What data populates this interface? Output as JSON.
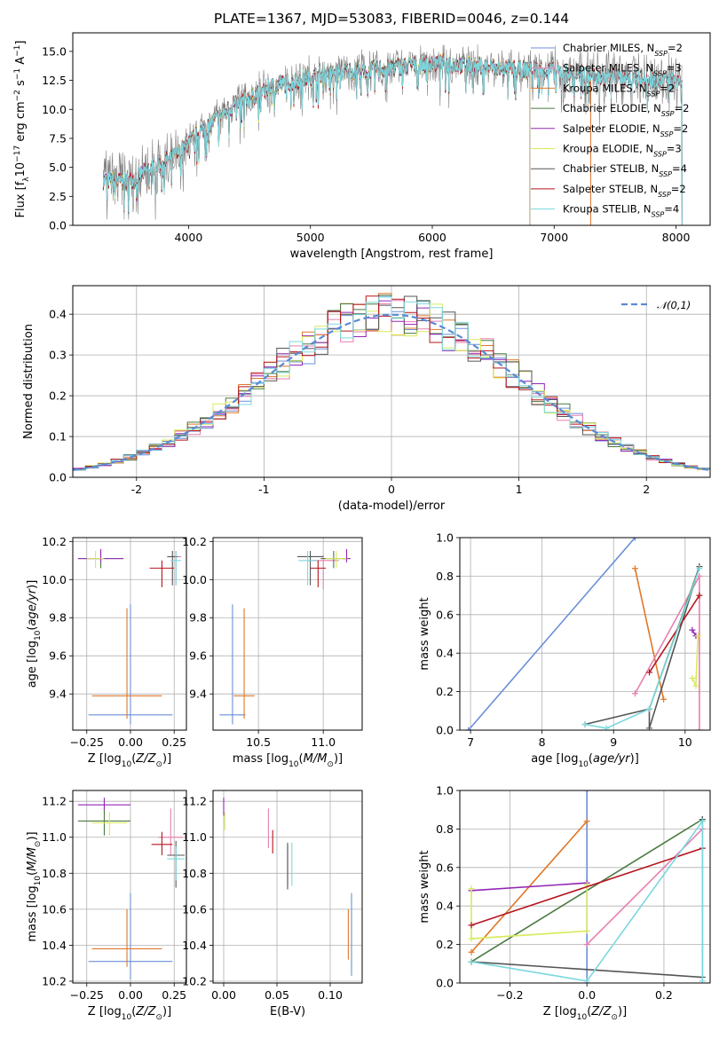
{
  "title": "PLATE=1367, MJD=53083, FIBERID=0046, z=0.144",
  "colors": {
    "Chabrier MILES": "#6a8fd8",
    "Salpeter MILES": "#e77fb0",
    "Kroupa MILES": "#e0782a",
    "Chabrier ELODIE": "#4a7a40",
    "Salpeter ELODIE": "#9226b4",
    "Kroupa ELODIE": "#d8ea5a",
    "Chabrier STELIB": "#555555",
    "Salpeter STELIB": "#b5161e",
    "Kroupa STELIB": "#7ad7dd",
    "data": "#808080",
    "normal": "#5b8ad6"
  },
  "chart_data": [
    {
      "type": "line",
      "panel": "spectrum",
      "xlabel": "wavelength [Angstrom, rest frame]",
      "ylabel": "Flux [f_λ10^-17 erg cm^-2 s^-1 A^-1]",
      "xlim": [
        3050,
        8280
      ],
      "ylim": [
        0,
        16.6
      ],
      "xticks": [
        4000,
        5000,
        6000,
        7000,
        8000
      ],
      "yticks": [
        0.0,
        2.5,
        5.0,
        7.5,
        10.0,
        12.5,
        15.0
      ],
      "legend_position": "top-right",
      "legend": [
        {
          "label": "Chabrier MILES, N",
          "sub": "SSP",
          "n": "=2",
          "model": "Chabrier MILES"
        },
        {
          "label": "Salpeter MILES, N",
          "sub": "SSP",
          "n": "=3",
          "model": "Salpeter MILES"
        },
        {
          "label": "Kroupa MILES, N",
          "sub": "SSP",
          "n": "=2",
          "model": "Kroupa MILES"
        },
        {
          "label": "Chabrier ELODIE, N",
          "sub": "SSP",
          "n": "=2",
          "model": "Chabrier ELODIE"
        },
        {
          "label": "Salpeter ELODIE, N",
          "sub": "SSP",
          "n": "=2",
          "model": "Salpeter ELODIE"
        },
        {
          "label": "Kroupa ELODIE, N",
          "sub": "SSP",
          "n": "=3",
          "model": "Kroupa ELODIE"
        },
        {
          "label": "Chabrier STELIB, N",
          "sub": "SSP",
          "n": "=4",
          "model": "Chabrier STELIB"
        },
        {
          "label": "Salpeter STELIB, N",
          "sub": "SSP",
          "n": "=2",
          "model": "Salpeter STELIB"
        },
        {
          "label": "Kroupa STELIB, N",
          "sub": "SSP",
          "n": "=4",
          "model": "Kroupa STELIB"
        }
      ],
      "continuum": [
        [
          3300,
          3.9
        ],
        [
          3500,
          3.7
        ],
        [
          3700,
          5.0
        ],
        [
          3900,
          6.0
        ],
        [
          4000,
          7.2
        ],
        [
          4200,
          9.0
        ],
        [
          4400,
          10.5
        ],
        [
          4700,
          12.0
        ],
        [
          5000,
          12.8
        ],
        [
          5200,
          13.2
        ],
        [
          5500,
          13.4
        ],
        [
          5800,
          13.8
        ],
        [
          6000,
          14.0
        ],
        [
          6300,
          13.8
        ],
        [
          6600,
          13.5
        ],
        [
          7000,
          13.3
        ],
        [
          7400,
          12.8
        ],
        [
          7700,
          12.6
        ],
        [
          8050,
          12.4
        ]
      ],
      "model_ranges": {
        "Chabrier MILES": [
          3300,
          7300
        ],
        "Salpeter MILES": [
          3300,
          7300
        ],
        "Kroupa MILES": [
          3300,
          7300
        ],
        "Chabrier ELODIE": [
          3300,
          6800
        ],
        "Salpeter ELODIE": [
          3300,
          6800
        ],
        "Kroupa ELODIE": [
          3300,
          6800
        ],
        "Chabrier STELIB": [
          3300,
          8050
        ],
        "Salpeter STELIB": [
          3300,
          8050
        ],
        "Kroupa STELIB": [
          3300,
          8050
        ]
      }
    },
    {
      "type": "histogram",
      "panel": "residuals",
      "xlabel": "(data-model)/error",
      "ylabel": "Normed distribution",
      "xlim": [
        -2.5,
        2.5
      ],
      "ylim": [
        0,
        0.47
      ],
      "xticks": [
        -2,
        -1,
        0,
        1,
        2
      ],
      "yticks": [
        0.0,
        0.1,
        0.2,
        0.3,
        0.4
      ],
      "legend_position": "top-right",
      "legend_label": "𝒩(0,1)",
      "bin_width": 0.1,
      "normal_curve": {
        "mean": 0,
        "sigma": 1
      }
    },
    {
      "type": "scatter",
      "panel": "age-vs-Z",
      "xlabel": "Z [log10(Z/Z⊙)]",
      "ylabel": "age  [log10(age/yr)]",
      "xlim": [
        -0.33,
        0.32
      ],
      "ylim": [
        9.21,
        10.22
      ],
      "xticks": [
        -0.25,
        0.0,
        0.25
      ],
      "xticklabels": [
        "−0.25",
        "0.00",
        "0.25"
      ],
      "yticks": [
        9.4,
        9.6,
        9.8,
        10.0,
        10.2
      ],
      "points": [
        {
          "model": "Chabrier MILES",
          "x": 0.0,
          "xerr": 0.24,
          "y": 9.29,
          "yerr_lo": 0.05,
          "yerr_hi": 0.58
        },
        {
          "model": "Kroupa MILES",
          "x": -0.02,
          "xerr": 0.2,
          "y": 9.39,
          "yerr_lo": 0.12,
          "yerr_hi": 0.46
        },
        {
          "model": "Salpeter MILES",
          "x": 0.26,
          "xerr": 0.03,
          "y": 10.12,
          "yerr_lo": 0.15,
          "yerr_hi": 0.03
        },
        {
          "model": "Chabrier ELODIE",
          "x": -0.17,
          "xerr": 0.13,
          "y": 10.11,
          "yerr_lo": 0.05,
          "yerr_hi": 0.04
        },
        {
          "model": "Salpeter ELODIE",
          "x": -0.17,
          "xerr": 0.13,
          "y": 10.11,
          "yerr_lo": 0.02,
          "yerr_hi": 0.05
        },
        {
          "model": "Kroupa ELODIE",
          "x": -0.2,
          "xerr": 0.05,
          "y": 10.11,
          "yerr_lo": 0.05,
          "yerr_hi": 0.04
        },
        {
          "model": "Chabrier STELIB",
          "x": 0.24,
          "xerr": 0.03,
          "y": 10.12,
          "yerr_lo": 0.15,
          "yerr_hi": 0.03
        },
        {
          "model": "Salpeter STELIB",
          "x": 0.18,
          "xerr": 0.07,
          "y": 10.06,
          "yerr_lo": 0.1,
          "yerr_hi": 0.04
        },
        {
          "model": "Kroupa STELIB",
          "x": 0.26,
          "xerr": 0.03,
          "y": 10.1,
          "yerr_lo": 0.13,
          "yerr_hi": 0.05
        }
      ]
    },
    {
      "type": "scatter",
      "panel": "age-vs-mass",
      "xlabel": "mass [log10(M/M⊙)]",
      "ylabel": "",
      "xlim": [
        10.15,
        11.3
      ],
      "ylim": [
        9.21,
        10.22
      ],
      "xticks": [
        10.5,
        11.0
      ],
      "xticklabels": [
        "10.5",
        "11.0"
      ],
      "yticks": [
        9.4,
        9.6,
        9.8,
        10.0,
        10.2
      ],
      "points": [
        {
          "model": "Chabrier MILES",
          "x": 10.3,
          "xerr": 0.1,
          "y": 9.29,
          "yerr_lo": 0.05,
          "yerr_hi": 0.58
        },
        {
          "model": "Kroupa MILES",
          "x": 10.39,
          "xerr": 0.08,
          "y": 9.39,
          "yerr_lo": 0.12,
          "yerr_hi": 0.46
        },
        {
          "model": "Salpeter MILES",
          "x": 11.0,
          "xerr": 0.12,
          "y": 10.1,
          "yerr_lo": 0.15,
          "yerr_hi": 0.03
        },
        {
          "model": "Chabrier ELODIE",
          "x": 11.08,
          "xerr": 0.1,
          "y": 10.11,
          "yerr_lo": 0.05,
          "yerr_hi": 0.04
        },
        {
          "model": "Salpeter ELODIE",
          "x": 11.18,
          "xerr": 0.03,
          "y": 10.11,
          "yerr_lo": 0.02,
          "yerr_hi": 0.05
        },
        {
          "model": "Kroupa ELODIE",
          "x": 11.1,
          "xerr": 0.08,
          "y": 10.11,
          "yerr_lo": 0.05,
          "yerr_hi": 0.04
        },
        {
          "model": "Chabrier STELIB",
          "x": 10.9,
          "xerr": 0.1,
          "y": 10.12,
          "yerr_lo": 0.15,
          "yerr_hi": 0.03
        },
        {
          "model": "Salpeter STELIB",
          "x": 10.96,
          "xerr": 0.06,
          "y": 10.06,
          "yerr_lo": 0.1,
          "yerr_hi": 0.04
        },
        {
          "model": "Kroupa STELIB",
          "x": 10.88,
          "xerr": 0.07,
          "y": 10.1,
          "yerr_lo": 0.13,
          "yerr_hi": 0.05
        }
      ]
    },
    {
      "type": "line",
      "panel": "mass-weight-vs-age",
      "xlabel": "age  [log10(age/yr)]",
      "ylabel": "mass weight",
      "xlim": [
        6.85,
        10.35
      ],
      "ylim": [
        0,
        1.0
      ],
      "xticks": [
        7,
        8,
        9,
        10
      ],
      "yticks": [
        0.0,
        0.2,
        0.4,
        0.6,
        0.8,
        1.0
      ],
      "series": [
        {
          "model": "Chabrier MILES",
          "x": [
            6.97,
            9.3
          ],
          "y": [
            0.0,
            1.0
          ]
        },
        {
          "model": "Kroupa MILES",
          "x": [
            9.3,
            9.7
          ],
          "y": [
            0.84,
            0.16
          ]
        },
        {
          "model": "Salpeter MILES",
          "x": [
            9.3,
            10.2,
            10.2
          ],
          "y": [
            0.19,
            0.8,
            0.0
          ]
        },
        {
          "model": "Chabrier ELODIE",
          "x": [
            9.5,
            10.2
          ],
          "y": [
            0.11,
            0.85
          ]
        },
        {
          "model": "Salpeter ELODIE",
          "x": [
            10.1,
            10.15
          ],
          "y": [
            0.52,
            0.49
          ]
        },
        {
          "model": "Kroupa ELODIE",
          "x": [
            10.1,
            10.15,
            10.18
          ],
          "y": [
            0.27,
            0.23,
            0.49
          ]
        },
        {
          "model": "Chabrier STELIB",
          "x": [
            8.6,
            9.5,
            9.5,
            10.2
          ],
          "y": [
            0.03,
            0.11,
            0.01,
            0.85
          ]
        },
        {
          "model": "Salpeter STELIB",
          "x": [
            9.5,
            10.2
          ],
          "y": [
            0.3,
            0.7
          ]
        },
        {
          "model": "Kroupa STELIB",
          "x": [
            8.6,
            8.9,
            9.5,
            10.2
          ],
          "y": [
            0.03,
            0.01,
            0.11,
            0.84
          ]
        }
      ]
    },
    {
      "type": "scatter",
      "panel": "mass-vs-Z",
      "xlabel": "Z [log10(Z/Z⊙)]",
      "ylabel": "mass [log10(M/M⊙)]",
      "xlim": [
        -0.33,
        0.32
      ],
      "ylim": [
        10.19,
        11.26
      ],
      "xticks": [
        -0.25,
        0.0,
        0.25
      ],
      "xticklabels": [
        "−0.25",
        "0.00",
        "0.25"
      ],
      "yticks": [
        10.2,
        10.4,
        10.6,
        10.8,
        11.0,
        11.2
      ],
      "points": [
        {
          "model": "Chabrier MILES",
          "x": 0.0,
          "xerr": 0.24,
          "y": 10.31,
          "yerr_lo": 0.1,
          "yerr_hi": 0.38
        },
        {
          "model": "Kroupa MILES",
          "x": -0.02,
          "xerr": 0.2,
          "y": 10.38,
          "yerr_lo": 0.1,
          "yerr_hi": 0.22
        },
        {
          "model": "Salpeter MILES",
          "x": 0.23,
          "xerr": 0.07,
          "y": 11.0,
          "yerr_lo": 0.1,
          "yerr_hi": 0.16
        },
        {
          "model": "Chabrier ELODIE",
          "x": -0.15,
          "xerr": 0.15,
          "y": 11.09,
          "yerr_lo": 0.08,
          "yerr_hi": 0.07
        },
        {
          "model": "Salpeter ELODIE",
          "x": -0.15,
          "xerr": 0.15,
          "y": 11.18,
          "yerr_lo": 0.03,
          "yerr_hi": 0.04
        },
        {
          "model": "Kroupa ELODIE",
          "x": -0.12,
          "xerr": 0.1,
          "y": 11.08,
          "yerr_lo": 0.07,
          "yerr_hi": 0.06
        },
        {
          "model": "Chabrier STELIB",
          "x": 0.26,
          "xerr": 0.05,
          "y": 10.9,
          "yerr_lo": 0.18,
          "yerr_hi": 0.08
        },
        {
          "model": "Salpeter STELIB",
          "x": 0.18,
          "xerr": 0.06,
          "y": 10.96,
          "yerr_lo": 0.06,
          "yerr_hi": 0.07
        },
        {
          "model": "Kroupa STELIB",
          "x": 0.26,
          "xerr": 0.05,
          "y": 10.88,
          "yerr_lo": 0.12,
          "yerr_hi": 0.07
        }
      ]
    },
    {
      "type": "scatter",
      "panel": "mass-vs-EBV",
      "xlabel": "E(B-V)",
      "ylabel": "",
      "xlim": [
        -0.01,
        0.13
      ],
      "ylim": [
        10.19,
        11.26
      ],
      "xticks": [
        0.0,
        0.05,
        0.1
      ],
      "xticklabels": [
        "0.00",
        "0.05",
        "0.10"
      ],
      "yticks": [
        10.2,
        10.4,
        10.6,
        10.8,
        11.0,
        11.2
      ],
      "points": [
        {
          "model": "Chabrier MILES",
          "x": 0.12,
          "y": 10.45,
          "yerr_lo": 0.22,
          "yerr_hi": 0.24
        },
        {
          "model": "Kroupa MILES",
          "x": 0.117,
          "y": 10.45,
          "yerr_lo": 0.13,
          "yerr_hi": 0.15
        },
        {
          "model": "Salpeter MILES",
          "x": 0.042,
          "y": 11.04,
          "yerr_lo": 0.1,
          "yerr_hi": 0.12
        },
        {
          "model": "Chabrier ELODIE",
          "x": 0.06,
          "y": 10.85,
          "yerr_lo": 0.12,
          "yerr_hi": 0.12
        },
        {
          "model": "Salpeter ELODIE",
          "x": 0.0,
          "y": 11.17,
          "yerr_lo": 0.05,
          "yerr_hi": 0.05
        },
        {
          "model": "Kroupa ELODIE",
          "x": 0.001,
          "y": 11.09,
          "yerr_lo": 0.05,
          "yerr_hi": 0.05
        },
        {
          "model": "Chabrier STELIB",
          "x": 0.06,
          "y": 10.83,
          "yerr_lo": 0.12,
          "yerr_hi": 0.13
        },
        {
          "model": "Salpeter STELIB",
          "x": 0.046,
          "y": 10.97,
          "yerr_lo": 0.06,
          "yerr_hi": 0.07
        },
        {
          "model": "Kroupa STELIB",
          "x": 0.064,
          "y": 10.86,
          "yerr_lo": 0.13,
          "yerr_hi": 0.11
        }
      ]
    },
    {
      "type": "line",
      "panel": "mass-weight-vs-Z",
      "xlabel": "Z [log10(Z/Z⊙)]",
      "ylabel": "mass weight",
      "xlim": [
        -0.33,
        0.32
      ],
      "ylim": [
        0,
        1.0
      ],
      "xticks": [
        -0.2,
        0.0,
        0.2
      ],
      "xticklabels": [
        "−0.2",
        "0.0",
        "0.2"
      ],
      "yticks": [
        0.0,
        0.2,
        0.4,
        0.6,
        0.8,
        1.0
      ],
      "series": [
        {
          "model": "Chabrier MILES",
          "x": [
            0.0,
            0.0
          ],
          "y": [
            0.0,
            1.0
          ]
        },
        {
          "model": "Kroupa MILES",
          "x": [
            -0.3,
            0.0
          ],
          "y": [
            0.16,
            0.84
          ]
        },
        {
          "model": "Salpeter MILES",
          "x": [
            0.0,
            0.3
          ],
          "y": [
            0.2,
            0.8
          ]
        },
        {
          "model": "Chabrier ELODIE",
          "x": [
            -0.3,
            0.3
          ],
          "y": [
            0.11,
            0.85
          ]
        },
        {
          "model": "Salpeter ELODIE",
          "x": [
            -0.3,
            0.0
          ],
          "y": [
            0.48,
            0.52
          ]
        },
        {
          "model": "Kroupa ELODIE",
          "x": [
            -0.3,
            -0.3,
            0.0,
            0.0
          ],
          "y": [
            0.49,
            0.23,
            0.27,
            0.51
          ]
        },
        {
          "model": "Chabrier STELIB",
          "x": [
            -0.3,
            0.3,
            0.3
          ],
          "y": [
            0.11,
            0.03,
            0.85
          ]
        },
        {
          "model": "Salpeter STELIB",
          "x": [
            -0.3,
            0.3
          ],
          "y": [
            0.3,
            0.7
          ]
        },
        {
          "model": "Kroupa STELIB",
          "x": [
            -0.3,
            0.0,
            0.3,
            0.3
          ],
          "y": [
            0.11,
            0.01,
            0.84,
            0.01
          ]
        }
      ]
    }
  ]
}
